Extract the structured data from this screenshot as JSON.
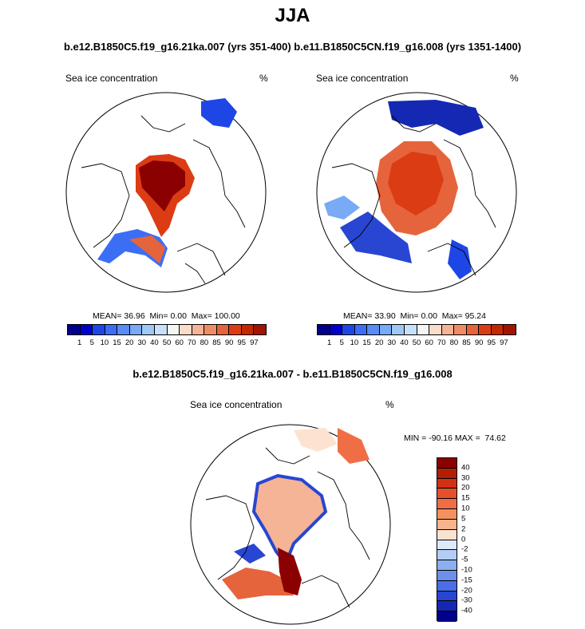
{
  "figure": {
    "title": "JJA",
    "subtitle": "b.e12.B1850C5.f19_g16.21ka.007 (yrs 351-400) b.e11.B1850C5CN.f19_g16.008 (yrs 1351-1400)",
    "diff_title": "b.e12.B1850C5.f19_g16.21ka.007 - b.e11.B1850C5CN.f19_g16.008"
  },
  "chart_data": [
    {
      "type": "heatmap",
      "projection": "north-polar-stereographic",
      "variable": "Sea ice concentration",
      "units": "%",
      "stats": {
        "mean": "36.96",
        "min": "0.00",
        "max": "100.00"
      },
      "colorbar": {
        "levels": [
          "1",
          "5",
          "10",
          "15",
          "20",
          "30",
          "40",
          "50",
          "60",
          "70",
          "80",
          "85",
          "90",
          "95",
          "97"
        ],
        "colors": [
          "#00008b",
          "#0000cd",
          "#1e46e6",
          "#3c6ef5",
          "#5a8cf5",
          "#78aaf5",
          "#a0c8f5",
          "#c8e1fa",
          "#f5f5f5",
          "#fadcc8",
          "#f5b496",
          "#f08c64",
          "#e6643c",
          "#dc3c14",
          "#c32800",
          "#a01400"
        ]
      }
    },
    {
      "type": "heatmap",
      "projection": "north-polar-stereographic",
      "variable": "Sea ice concentration",
      "units": "%",
      "stats": {
        "mean": "33.90",
        "min": "0.00",
        "max": "95.24"
      },
      "colorbar": {
        "levels": [
          "1",
          "5",
          "10",
          "15",
          "20",
          "30",
          "40",
          "50",
          "60",
          "70",
          "80",
          "85",
          "90",
          "95",
          "97"
        ],
        "colors": [
          "#00008b",
          "#0000cd",
          "#1e46e6",
          "#3c6ef5",
          "#5a8cf5",
          "#78aaf5",
          "#a0c8f5",
          "#c8e1fa",
          "#f5f5f5",
          "#fadcc8",
          "#f5b496",
          "#f08c64",
          "#e6643c",
          "#dc3c14",
          "#c32800",
          "#a01400"
        ]
      }
    },
    {
      "type": "heatmap",
      "projection": "north-polar-stereographic",
      "variable": "Sea ice concentration",
      "units": "%",
      "stats_text": "MIN = -90.16 MAX =  74.62",
      "colorbar": {
        "levels": [
          "40",
          "30",
          "20",
          "15",
          "10",
          "5",
          "2",
          "0",
          "-2",
          "-5",
          "-10",
          "-15",
          "-20",
          "-30",
          "-40"
        ],
        "colors": [
          "#8b0000",
          "#b41e00",
          "#d23214",
          "#e6502d",
          "#f06e46",
          "#f5915f",
          "#f8b48c",
          "#fde2d2",
          "#dde9fa",
          "#b4cdf5",
          "#8cafef",
          "#6e8fec",
          "#4b6ee6",
          "#2846d2",
          "#1428b4",
          "#00008b"
        ]
      }
    }
  ]
}
